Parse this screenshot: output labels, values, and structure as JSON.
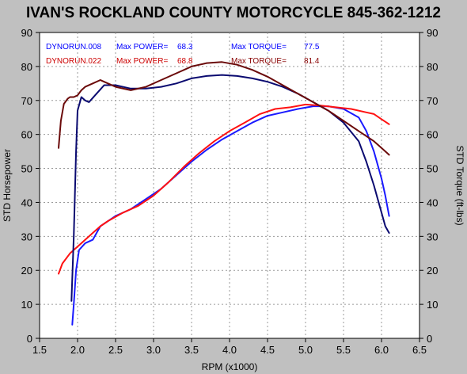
{
  "title": "IVAN'S ROCKLAND COUNTY MOTORCYCLE 845-362-1212",
  "chart_data": {
    "type": "line",
    "title": "IVAN'S ROCKLAND COUNTY MOTORCYCLE 845-362-1212",
    "xlabel": "RPM (x1000)",
    "ylabel_left": "STD Horsepower",
    "ylabel_right": "STD Torque (ft-lbs)",
    "xlim": [
      1.5,
      6.5
    ],
    "ylim": [
      0,
      90
    ],
    "x_ticks": [
      "1.5",
      "2.0",
      "2.5",
      "3.0",
      "3.5",
      "4.0",
      "4.5",
      "5.0",
      "5.5",
      "6.0",
      "6.5"
    ],
    "y_ticks": [
      "0",
      "10",
      "20",
      "30",
      "40",
      "50",
      "60",
      "70",
      "80",
      "90"
    ],
    "grid": true,
    "legend": [
      {
        "run": "DYNORUN.008",
        "power_label": "Max POWER=",
        "power": "68.3",
        "torque_label": "Max TORQUE=",
        "torque": "77.5",
        "color": "#0000ff"
      },
      {
        "run": "DYNORUN.022",
        "power_label": "Max POWER=",
        "power": "68.8",
        "torque_label": "Max TORQUE=",
        "torque": "81.4",
        "color": "#cc0000"
      }
    ],
    "series": [
      {
        "color": "#1a1aff",
        "x": [
          1.93,
          1.95,
          1.98,
          2.02,
          2.1,
          2.2,
          2.3,
          2.5,
          2.7,
          2.9,
          3.1,
          3.3,
          3.5,
          3.7,
          3.9,
          4.1,
          4.3,
          4.5,
          4.7,
          4.9,
          5.1,
          5.3,
          5.5,
          5.7,
          5.8,
          5.9,
          6.0,
          6.05,
          6.1
        ],
        "values": [
          4,
          10,
          20,
          26,
          28,
          29,
          33,
          36,
          38,
          41,
          44,
          48,
          52,
          55.5,
          58.5,
          61,
          63.5,
          65.5,
          66.5,
          67.5,
          68.3,
          68.3,
          67.5,
          65,
          61,
          55,
          47,
          42,
          36
        ]
      },
      {
        "color": "#ff1111",
        "x": [
          1.75,
          1.8,
          1.9,
          2.0,
          2.1,
          2.2,
          2.3,
          2.4,
          2.6,
          2.8,
          3.0,
          3.2,
          3.4,
          3.6,
          3.8,
          4.0,
          4.2,
          4.4,
          4.6,
          4.8,
          5.0,
          5.2,
          5.4,
          5.6,
          5.8,
          5.9,
          6.0,
          6.1
        ],
        "values": [
          19,
          22,
          25,
          27,
          29,
          31,
          33,
          34.5,
          37,
          39,
          42,
          46,
          50.5,
          54.5,
          58,
          61,
          63.5,
          66,
          67.5,
          68,
          68.8,
          68.5,
          68,
          67.5,
          66.5,
          66,
          64.5,
          63
        ]
      },
      {
        "color": "#0a0a70",
        "x": [
          1.92,
          1.95,
          1.98,
          2.0,
          2.05,
          2.1,
          2.15,
          2.25,
          2.35,
          2.5,
          2.7,
          2.9,
          3.1,
          3.3,
          3.5,
          3.7,
          3.9,
          4.1,
          4.3,
          4.5,
          4.7,
          4.9,
          5.1,
          5.3,
          5.5,
          5.7,
          5.8,
          5.9,
          6.0,
          6.05,
          6.1
        ],
        "values": [
          11,
          30,
          55,
          67,
          71,
          70,
          69.5,
          72,
          74.5,
          74.5,
          73.5,
          73.5,
          74,
          75,
          76.5,
          77.2,
          77.5,
          77.2,
          76.5,
          75.5,
          74,
          72,
          69.5,
          67,
          63.5,
          58,
          52,
          45,
          37,
          33,
          31
        ]
      },
      {
        "color": "#6b0a0a",
        "x": [
          1.75,
          1.78,
          1.82,
          1.87,
          1.9,
          1.95,
          2.0,
          2.05,
          2.1,
          2.2,
          2.3,
          2.35,
          2.4,
          2.5,
          2.7,
          2.9,
          3.1,
          3.3,
          3.5,
          3.7,
          3.9,
          4.1,
          4.3,
          4.5,
          4.7,
          4.9,
          5.1,
          5.3,
          5.5,
          5.7,
          5.9,
          6.0,
          6.1
        ],
        "values": [
          56,
          64,
          69,
          70.5,
          71,
          71,
          71.5,
          73,
          74,
          75,
          76,
          75.5,
          75,
          74,
          73,
          74,
          76,
          78,
          80,
          81,
          81.3,
          80.5,
          79,
          77,
          74.5,
          72,
          69.5,
          67,
          64,
          61,
          58,
          56,
          54
        ]
      }
    ]
  }
}
